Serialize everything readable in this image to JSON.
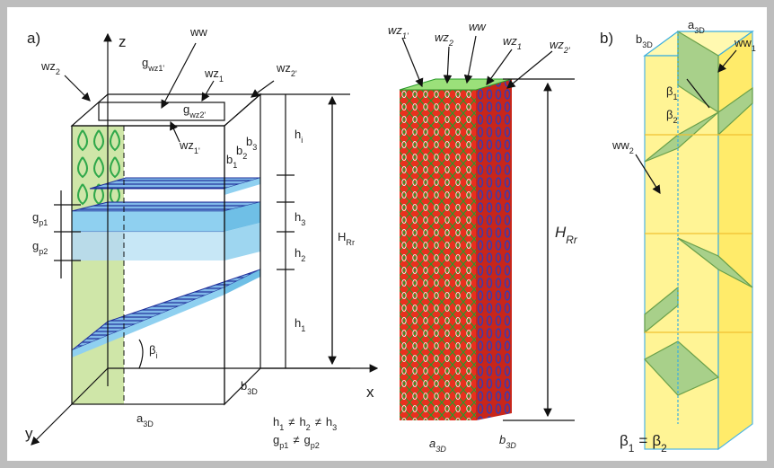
{
  "panel_a": {
    "labels": [
      {
        "text": "a)"
      },
      {
        "text": "z"
      },
      {
        "text": "ww"
      },
      {
        "text": "wz",
        "sub": "2"
      },
      {
        "text": "g",
        "sub": "wz1'"
      },
      {
        "text": "wz",
        "sub": "1"
      },
      {
        "text": "wz",
        "sub": "2'"
      },
      {
        "text": "g",
        "sub": "wz2'"
      },
      {
        "text": "wz",
        "sub": "1'"
      },
      {
        "text": "h",
        "sub": "i"
      },
      {
        "text": "b",
        "sub": "1"
      },
      {
        "text": "b",
        "sub": "2"
      },
      {
        "text": "b",
        "sub": "3"
      },
      {
        "text": "H",
        "sub": "Rr"
      },
      {
        "text": "h",
        "sub": "3"
      },
      {
        "text": "h",
        "sub": "2"
      },
      {
        "text": "h",
        "sub": "1"
      },
      {
        "text": "g",
        "sub": "p1"
      },
      {
        "text": "g",
        "sub": "p2"
      },
      {
        "text": "β",
        "sub": "i"
      },
      {
        "text": "x"
      },
      {
        "text": "y"
      },
      {
        "text": "a",
        "sub": "3D"
      },
      {
        "text": "b",
        "sub": "3D"
      }
    ],
    "equations": [
      {
        "terms": [
          {
            "text": "h",
            "sub": "1"
          },
          {
            "text": "h",
            "sub": "2"
          },
          {
            "text": "h",
            "sub": "3"
          }
        ],
        "operator": "≠"
      },
      {
        "terms": [
          {
            "text": "g",
            "sub": "p1"
          },
          {
            "text": "g",
            "sub": "p2"
          }
        ],
        "operator": "≠"
      }
    ]
  },
  "panel_middle": {
    "labels": [
      {
        "text": "wz",
        "sub": "1'"
      },
      {
        "text": "wz",
        "sub": "2"
      },
      {
        "text": "ww"
      },
      {
        "text": "wz",
        "sub": "1"
      },
      {
        "text": "wz",
        "sub": "2'"
      },
      {
        "text": "H",
        "sub": "Rr"
      },
      {
        "text": "a",
        "sub": "3D"
      },
      {
        "text": "b",
        "sub": "3D"
      }
    ]
  },
  "panel_b": {
    "labels": [
      {
        "text": "b)"
      },
      {
        "text": "b",
        "sub": "3D"
      },
      {
        "text": "a",
        "sub": "3D"
      },
      {
        "text": "ww",
        "sub": "1"
      },
      {
        "text": "β",
        "sub": "1"
      },
      {
        "text": "β",
        "sub": "2"
      },
      {
        "text": "ww",
        "sub": "2"
      }
    ],
    "equation": {
      "terms": [
        {
          "text": "β",
          "sub": "1"
        },
        {
          "text": "β",
          "sub": "2"
        }
      ],
      "operator": "="
    }
  }
}
